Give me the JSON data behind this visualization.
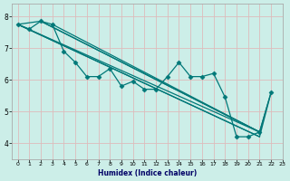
{
  "xlabel": "Humidex (Indice chaleur)",
  "xlim": [
    -0.5,
    23
  ],
  "ylim": [
    3.5,
    8.4
  ],
  "yticks": [
    4,
    5,
    6,
    7,
    8
  ],
  "xticks": [
    0,
    1,
    2,
    3,
    4,
    5,
    6,
    7,
    8,
    9,
    10,
    11,
    12,
    13,
    14,
    15,
    16,
    17,
    18,
    19,
    20,
    21,
    22,
    23
  ],
  "bg_color": "#cceee8",
  "grid_color": "#ddbbbb",
  "line_color": "#007878",
  "line_width": 0.9,
  "marker_size": 2.5,
  "fan_lines": [
    {
      "x": [
        0,
        21
      ],
      "y": [
        7.75,
        4.2
      ]
    },
    {
      "x": [
        0,
        21
      ],
      "y": [
        7.75,
        4.35
      ]
    },
    {
      "x": [
        2,
        21
      ],
      "y": [
        7.85,
        4.35
      ]
    },
    {
      "x": [
        3,
        21
      ],
      "y": [
        7.75,
        4.35
      ]
    }
  ],
  "main_x": [
    0,
    1,
    2,
    3,
    4,
    5,
    6,
    7,
    8,
    9,
    10,
    11,
    12,
    13,
    14,
    15,
    16,
    17,
    18,
    19,
    20,
    21,
    22
  ],
  "main_y": [
    7.75,
    7.6,
    7.85,
    7.75,
    6.9,
    6.55,
    6.1,
    6.1,
    6.35,
    5.8,
    5.95,
    5.7,
    5.7,
    6.1,
    6.55,
    6.1,
    6.1,
    6.2,
    5.45,
    4.2,
    4.2,
    4.35,
    5.6
  ],
  "outer_poly_x": [
    0,
    2,
    21,
    22,
    21,
    0
  ],
  "outer_poly_y": [
    7.75,
    7.85,
    4.35,
    5.6,
    4.2,
    7.75
  ]
}
